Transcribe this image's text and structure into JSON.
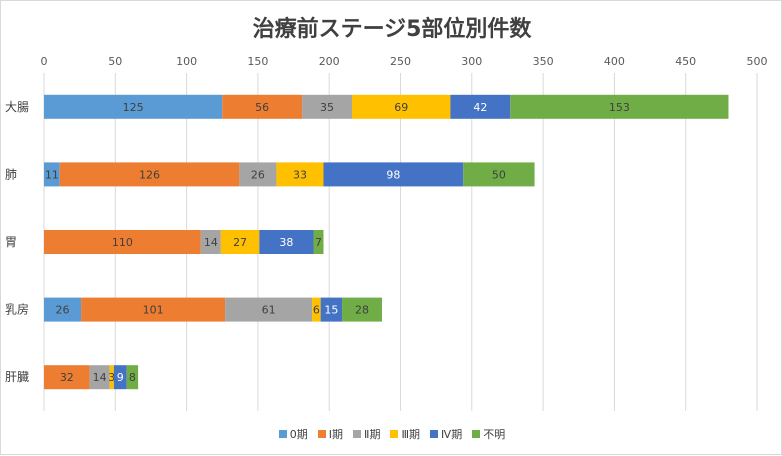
{
  "chart_data": {
    "type": "bar",
    "orientation": "horizontal",
    "stacked": true,
    "title": "治療前ステージ5部位別件数",
    "categories": [
      "大腸",
      "肺",
      "胃",
      "乳房",
      "肝臓"
    ],
    "x_ticks": [
      "0",
      "50",
      "100",
      "150",
      "200",
      "250",
      "300",
      "350",
      "400",
      "450",
      "500"
    ],
    "xlim": [
      0,
      500
    ],
    "axis_position": "top",
    "grid": true,
    "legend_position": "bottom",
    "series": [
      {
        "name": "0期",
        "color": "#5B9BD5",
        "values": [
          125,
          11,
          0,
          26,
          0
        ]
      },
      {
        "name": "Ⅰ期",
        "color": "#ED7D31",
        "values": [
          56,
          126,
          110,
          101,
          32
        ]
      },
      {
        "name": "Ⅱ期",
        "color": "#A5A5A5",
        "values": [
          35,
          26,
          14,
          61,
          14
        ]
      },
      {
        "name": "Ⅲ期",
        "color": "#FFC000",
        "values": [
          69,
          33,
          27,
          6,
          3
        ]
      },
      {
        "name": "Ⅳ期",
        "color": "#4472C4",
        "values": [
          42,
          98,
          38,
          15,
          9
        ]
      },
      {
        "name": "不明",
        "color": "#70AD47",
        "values": [
          153,
          50,
          7,
          28,
          8
        ]
      }
    ]
  }
}
